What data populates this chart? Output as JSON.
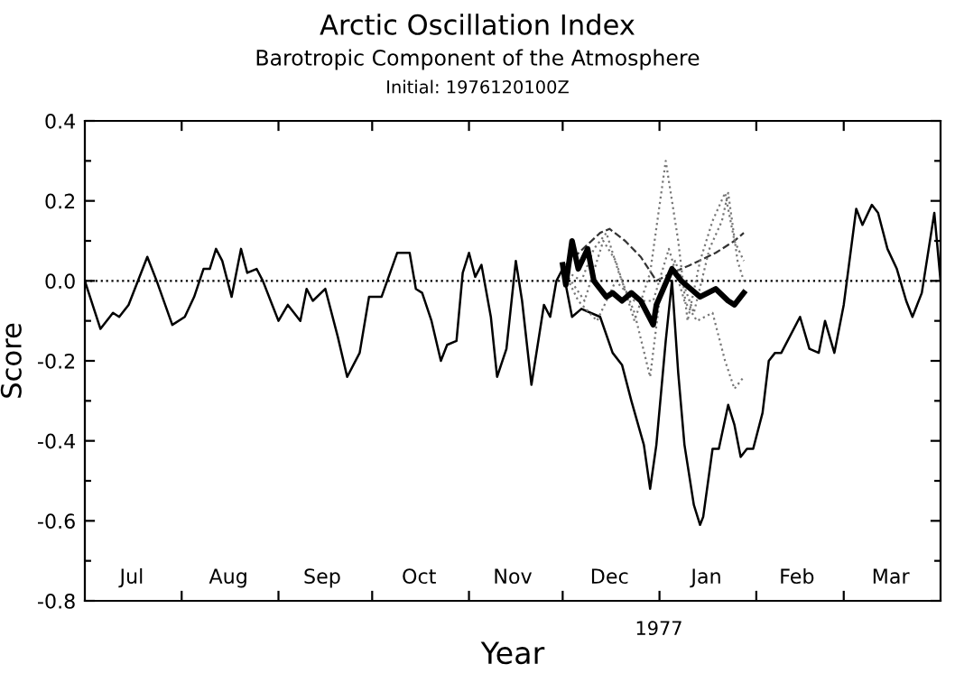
{
  "chart_data": {
    "type": "line",
    "title": "Arctic Oscillation Index",
    "subtitle": "Barotropic Component of the Atmosphere",
    "xlabel": "Year",
    "ylabel": "Score",
    "annotations": [
      "Initial: 1976120100Z",
      "1977"
    ],
    "xlim": [
      "1976-07-01",
      "1977-04-01"
    ],
    "xticks": [
      {
        "value": "1976-08-01",
        "label": null
      },
      {
        "value": "1976-09-01",
        "label": null
      },
      {
        "value": "1976-10-01",
        "label": null
      },
      {
        "value": "1976-11-01",
        "label": null
      },
      {
        "value": "1976-12-01",
        "label": null
      },
      {
        "value": "1977-01-01",
        "label": null
      },
      {
        "value": "1977-02-01",
        "label": null
      },
      {
        "value": "1977-03-01",
        "label": null
      },
      {
        "value": "1976-07-16",
        "label": "Jul"
      },
      {
        "value": "1976-08-16",
        "label": "Aug"
      },
      {
        "value": "1976-09-15",
        "label": "Sep"
      },
      {
        "value": "1976-10-16",
        "label": "Oct"
      },
      {
        "value": "1976-11-15",
        "label": "Nov"
      },
      {
        "value": "1976-12-16",
        "label": "Dec"
      },
      {
        "value": "1977-01-16",
        "label": "Jan"
      },
      {
        "value": "1977-02-14",
        "label": "Feb"
      },
      {
        "value": "1977-03-16",
        "label": "Mar"
      }
    ],
    "ylim": [
      -0.8,
      0.4
    ],
    "yticks": [
      -0.8,
      {
        "value": -0.7,
        "label": null
      },
      -0.6,
      {
        "value": -0.5,
        "label": null
      },
      -0.4,
      {
        "value": -0.3,
        "label": null
      },
      -0.2,
      {
        "value": -0.1,
        "label": null
      },
      {
        "value": 0,
        "label": "0.0"
      },
      {
        "value": 0.1,
        "label": null
      },
      0.2,
      {
        "value": 0.3,
        "label": null
      },
      0.4
    ],
    "grid": false,
    "legend": false,
    "marker": "none",
    "ref_lines": [
      {
        "axis": "y",
        "value": 0,
        "color": "#000000",
        "line_style": "dotted"
      }
    ],
    "series": [
      {
        "color": "#000000",
        "line_style": "solid",
        "x": [
          "1976-07-01",
          "1976-07-06",
          "1976-07-09",
          "1976-07-10",
          "1976-07-12",
          "1976-07-15",
          "1976-07-21",
          "1976-07-24",
          "1976-07-29",
          "1976-08-02",
          "1976-08-05",
          "1976-08-08",
          "1976-08-10",
          "1976-08-12",
          "1976-08-14",
          "1976-08-17",
          "1976-08-20",
          "1976-08-22",
          "1976-08-25",
          "1976-08-27",
          "1976-08-30",
          "1976-09-01",
          "1976-09-04",
          "1976-09-08",
          "1976-09-10",
          "1976-09-12",
          "1976-09-16",
          "1976-09-20",
          "1976-09-23",
          "1976-09-27",
          "1976-09-30",
          "1976-10-04",
          "1976-10-09",
          "1976-10-13",
          "1976-10-15",
          "1976-10-17",
          "1976-10-20",
          "1976-10-23",
          "1976-10-25",
          "1976-10-28",
          "1976-10-30",
          "1976-11-01",
          "1976-11-03",
          "1976-11-05",
          "1976-11-08",
          "1976-11-10",
          "1976-11-13",
          "1976-11-16",
          "1976-11-18",
          "1976-11-21",
          "1976-11-25",
          "1976-11-27",
          "1976-11-29",
          "1976-12-01",
          "1976-12-04",
          "1976-12-07",
          "1976-12-13",
          "1976-12-17",
          "1976-12-20",
          "1976-12-23",
          "1976-12-27",
          "1976-12-29",
          "1976-12-31",
          "1977-01-03",
          "1977-01-05",
          "1977-01-07",
          "1977-01-09",
          "1977-01-12",
          "1977-01-14",
          "1977-01-15",
          "1977-01-18",
          "1977-01-20",
          "1977-01-23",
          "1977-01-25",
          "1977-01-27",
          "1977-01-29",
          "1977-01-31",
          "1977-02-03",
          "1977-02-05",
          "1977-02-07",
          "1977-02-09",
          "1977-02-11",
          "1977-02-15",
          "1977-02-18",
          "1977-02-21",
          "1977-02-23",
          "1977-02-26",
          "1977-03-01",
          "1977-03-02",
          "1977-03-05",
          "1977-03-07",
          "1977-03-10",
          "1977-03-12",
          "1977-03-15",
          "1977-03-18",
          "1977-03-21",
          "1977-03-23",
          "1977-03-26",
          "1977-03-30",
          "1977-04-01"
        ],
        "values": [
          0.0,
          -0.12,
          -0.09,
          -0.08,
          -0.09,
          -0.06,
          0.06,
          0.0,
          -0.11,
          -0.09,
          -0.04,
          0.03,
          0.03,
          0.08,
          0.05,
          -0.04,
          0.08,
          0.02,
          0.03,
          0.0,
          -0.06,
          -0.1,
          -0.06,
          -0.1,
          -0.02,
          -0.05,
          -0.02,
          -0.14,
          -0.24,
          -0.18,
          -0.04,
          -0.04,
          0.07,
          0.07,
          -0.02,
          -0.03,
          -0.1,
          -0.2,
          -0.16,
          -0.15,
          0.02,
          0.07,
          0.01,
          0.04,
          -0.09,
          -0.24,
          -0.17,
          0.05,
          -0.05,
          -0.26,
          -0.06,
          -0.09,
          0.0,
          0.03,
          -0.09,
          -0.07,
          -0.09,
          -0.18,
          -0.21,
          -0.3,
          -0.41,
          -0.52,
          -0.41,
          -0.15,
          0.0,
          -0.23,
          -0.41,
          -0.56,
          -0.61,
          -0.59,
          -0.42,
          -0.42,
          -0.31,
          -0.36,
          -0.44,
          -0.42,
          -0.42,
          -0.33,
          -0.2,
          -0.18,
          -0.18,
          -0.15,
          -0.09,
          -0.17,
          -0.18,
          -0.1,
          -0.18,
          -0.06,
          0.0,
          0.18,
          0.14,
          0.19,
          0.17,
          0.08,
          0.03,
          -0.05,
          -0.09,
          -0.03,
          0.17,
          0.0
        ]
      },
      {
        "color": "#000000",
        "line_style": "solid",
        "x": [
          "1976-12-01",
          "1976-12-02",
          "1976-12-04",
          "1976-12-06",
          "1976-12-09",
          "1976-12-11",
          "1976-12-15",
          "1976-12-17",
          "1976-12-20",
          "1976-12-23",
          "1976-12-26",
          "1976-12-30",
          "1976-12-31",
          "1977-01-05",
          "1977-01-08",
          "1977-01-11",
          "1977-01-14",
          "1977-01-19",
          "1977-01-23",
          "1977-01-25",
          "1977-01-28"
        ],
        "values": [
          0.04,
          -0.01,
          0.1,
          0.03,
          0.08,
          0.0,
          -0.04,
          -0.03,
          -0.05,
          -0.03,
          -0.05,
          -0.11,
          -0.06,
          0.03,
          0.0,
          -0.02,
          -0.04,
          -0.02,
          -0.05,
          -0.06,
          -0.03
        ]
      },
      {
        "color": "#333333",
        "line_style": "dashed",
        "x": [
          "1976-12-02",
          "1976-12-13",
          "1976-12-16",
          "1976-12-21",
          "1976-12-26",
          "1976-12-31",
          "1977-01-05",
          "1977-01-11",
          "1977-01-19",
          "1977-01-25",
          "1977-01-28"
        ],
        "values": [
          0.04,
          0.12,
          0.13,
          0.1,
          0.06,
          0.0,
          0.02,
          0.04,
          0.07,
          0.1,
          0.12
        ]
      },
      {
        "color": "#777777",
        "line_style": "dotted",
        "x": [
          "1976-12-01",
          "1976-12-08",
          "1976-12-14",
          "1976-12-18",
          "1976-12-24",
          "1976-12-29",
          "1977-01-03",
          "1977-01-07",
          "1977-01-10",
          "1977-01-14",
          "1977-01-18",
          "1977-01-22",
          "1977-01-25",
          "1977-01-28"
        ],
        "values": [
          0.03,
          -0.05,
          0.1,
          0.05,
          -0.1,
          0.02,
          0.3,
          0.1,
          -0.1,
          0.05,
          0.15,
          0.22,
          0.1,
          0.05
        ]
      },
      {
        "color": "#777777",
        "line_style": "dotted",
        "x": [
          "1976-12-01",
          "1976-12-06",
          "1976-12-12",
          "1976-12-18",
          "1976-12-24",
          "1976-12-30",
          "1977-01-04",
          "1977-01-09",
          "1977-01-13",
          "1977-01-18",
          "1977-01-22",
          "1977-01-25",
          "1977-01-28"
        ],
        "values": [
          0.03,
          -0.05,
          -0.1,
          0.0,
          -0.05,
          -0.05,
          0.08,
          -0.05,
          -0.1,
          -0.08,
          -0.2,
          -0.27,
          -0.24
        ]
      },
      {
        "color": "#777777",
        "line_style": "dotted",
        "x": [
          "1976-12-01",
          "1976-12-07",
          "1976-12-11",
          "1976-12-15",
          "1976-12-19",
          "1976-12-24",
          "1976-12-29",
          "1977-01-01",
          "1977-01-06",
          "1977-01-12",
          "1977-01-17",
          "1977-01-21",
          "1977-01-23",
          "1977-01-26",
          "1977-01-28"
        ],
        "values": [
          0.03,
          0.0,
          0.08,
          0.12,
          0.02,
          -0.08,
          -0.24,
          -0.05,
          0.05,
          -0.08,
          0.08,
          0.15,
          0.22,
          0.05,
          0.0
        ]
      }
    ]
  }
}
